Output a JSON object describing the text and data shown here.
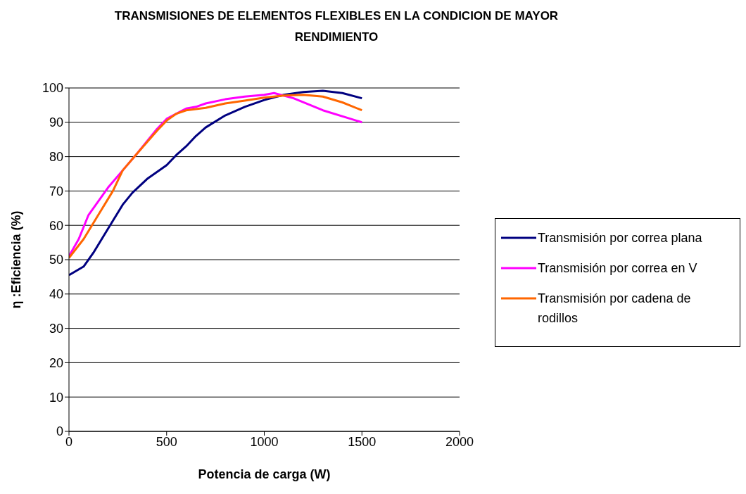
{
  "chart_data": {
    "type": "line",
    "title": "TRANSMISIONES DE ELEMENTOS FLEXIBLES EN LA CONDICION DE MAYOR RENDIMIENTO",
    "xlabel": "Potencia de carga (W)",
    "ylabel": "η :Eficiencia (%)",
    "xlim": [
      0,
      2000
    ],
    "xticks": [
      0,
      500,
      1000,
      1500,
      2000
    ],
    "ylim": [
      0,
      100
    ],
    "yticks": [
      0,
      10,
      20,
      30,
      40,
      50,
      60,
      70,
      80,
      90,
      100
    ],
    "grid": "y",
    "legend": "right",
    "marker": "none",
    "line_style": "solid",
    "series": [
      {
        "name": "Transmisión por correa plana",
        "color": "#000080",
        "x": [
          0,
          75,
          125,
          200,
          275,
          325,
          400,
          500,
          550,
          600,
          650,
          700,
          800,
          900,
          1000,
          1100,
          1200,
          1300,
          1400,
          1500
        ],
        "values": [
          45.5,
          48,
          52,
          59,
          66,
          69.5,
          73.5,
          77.5,
          80.5,
          83,
          86,
          88.5,
          92,
          94.5,
          96.5,
          98,
          98.8,
          99.2,
          98.5,
          97
        ]
      },
      {
        "name": "Transmisión por correa en V",
        "color": "#ff00ff",
        "x": [
          0,
          50,
          100,
          150,
          200,
          275,
          350,
          450,
          500,
          600,
          650,
          700,
          800,
          900,
          1000,
          1050,
          1150,
          1300,
          1500
        ],
        "values": [
          51,
          56,
          63,
          67,
          71,
          76,
          81,
          88,
          91,
          94,
          94.5,
          95.5,
          96.7,
          97.5,
          98,
          98.5,
          97,
          93.5,
          90
        ]
      },
      {
        "name": "Transmisión por cadena de rodillos",
        "color": "#ff6600",
        "x": [
          0,
          75,
          150,
          225,
          275,
          350,
          450,
          500,
          550,
          600,
          700,
          800,
          900,
          1000,
          1100,
          1200,
          1300,
          1400,
          1500
        ],
        "values": [
          50.5,
          56,
          63,
          70,
          76,
          81,
          87.5,
          90.5,
          92.5,
          93.5,
          94.2,
          95.5,
          96.3,
          97.2,
          97.8,
          98,
          97.5,
          95.8,
          93.5
        ]
      }
    ]
  }
}
